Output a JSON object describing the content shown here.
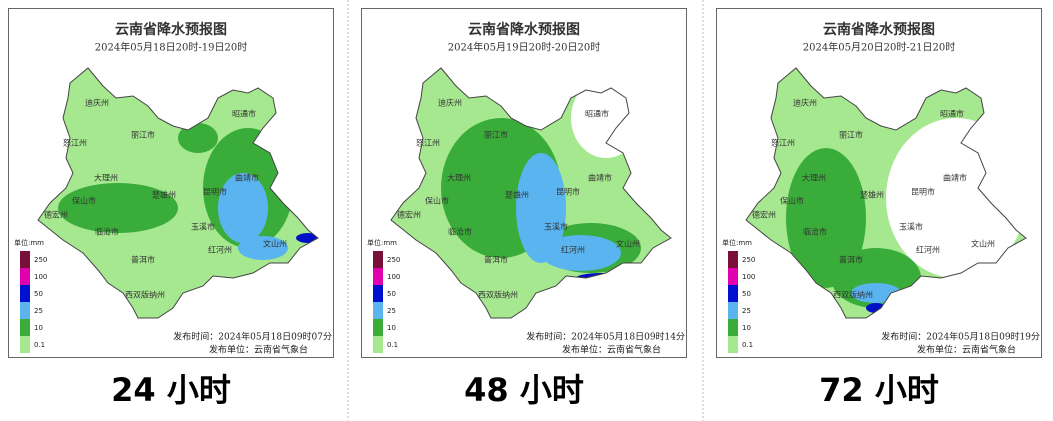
{
  "maps": [
    {
      "title": "云南省降水预报图",
      "subtitle": "2024年05月18日20时-19日20时",
      "publish_time": "发布时间：2024年05月18日09时07分",
      "publisher": "发布单位：云南省气象台",
      "caption": "24 小时"
    },
    {
      "title": "云南省降水预报图",
      "subtitle": "2024年05月19日20时-20日20时",
      "publish_time": "发布时间：2024年05月18日09时14分",
      "publisher": "发布单位：云南省气象台",
      "caption": "48 小时"
    },
    {
      "title": "云南省降水预报图",
      "subtitle": "2024年05月20日20时-21日20时",
      "publish_time": "发布时间：2024年05月18日09时19分",
      "publisher": "发布单位：云南省气象台",
      "caption": "72 小时"
    }
  ],
  "cities": [
    "迪庆州",
    "丽江市",
    "怒江州",
    "昭通市",
    "大理州",
    "曲靖市",
    "楚雄州",
    "昆明市",
    "保山市",
    "德宏州",
    "玉溪市",
    "临沧市",
    "红河州",
    "文山州",
    "普洱市",
    "西双版纳州"
  ],
  "legend": {
    "unit": "单位:mm",
    "labels": [
      "250",
      "100",
      "50",
      "25",
      "10",
      "0.1"
    ]
  }
}
